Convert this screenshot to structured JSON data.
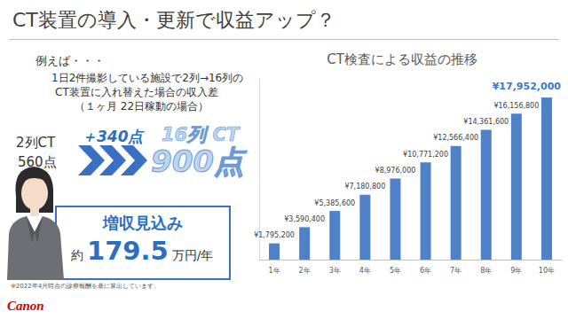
{
  "slide": {
    "title": "CT装置の導入・更新で収益アップ？",
    "lead": "例えば・・・",
    "example_lines": [
      "1日2件撮影している施設で2列→16列の",
      "CT装置に入れ替えた場合の収入差",
      "（１ヶ月 22日稼動の場合）"
    ],
    "before": {
      "label": "2列CT",
      "points": "560点"
    },
    "diff": "＋340点",
    "after": {
      "label": "16列 CT",
      "points": "900点"
    },
    "box": {
      "heading": "増収見込み",
      "prefix": "約",
      "amount": "179.5",
      "unit": "万円/年"
    },
    "footnote": "※2022年4月時点の診療報酬を基に算出しています。",
    "logo": "Canon"
  },
  "chart_data": {
    "type": "bar",
    "title": "CT検査による収益の推移",
    "categories": [
      "1年",
      "2年",
      "3年",
      "4年",
      "5年",
      "6年",
      "7年",
      "8年",
      "9年",
      "10年"
    ],
    "values": [
      1795200,
      3590400,
      5385600,
      7180800,
      8976000,
      10771200,
      12566400,
      14361600,
      16156800,
      17952000
    ],
    "value_labels": [
      "¥1,795,200",
      "¥3,590,400",
      "¥5,385,600",
      "¥7,180,800",
      "¥8,976,000",
      "¥10,771,200",
      "¥12,566,400",
      "¥14,361,600",
      "¥16,156,800",
      "¥17,952,000"
    ],
    "color": "#4f81c7",
    "ylim": [
      0,
      20000000
    ],
    "yticks": [
      0,
      20000000
    ],
    "grid": false,
    "data_labels": true,
    "tick_labels": "x"
  }
}
